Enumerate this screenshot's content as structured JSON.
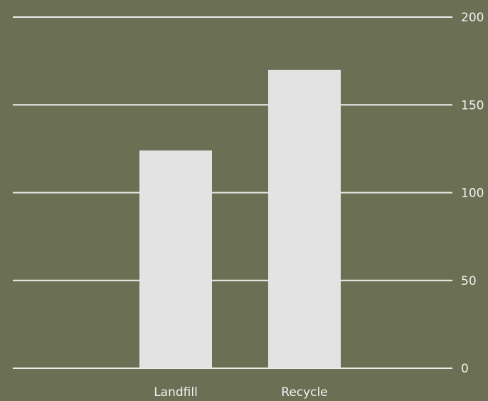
{
  "colors": {
    "background": "#6b7054",
    "bar": "#e3e3e3",
    "grid": "#ededed",
    "text": "#f2f2f2"
  },
  "chart_data": {
    "type": "bar",
    "title": "",
    "xlabel": "",
    "ylabel": "",
    "categories": [
      "Landfill",
      "Recycle"
    ],
    "values": [
      124,
      170
    ],
    "ylim": [
      0,
      200
    ],
    "yticks": [
      0,
      50,
      100,
      150,
      200
    ],
    "yaxis_position": "right",
    "grid": true,
    "legend": "none"
  }
}
